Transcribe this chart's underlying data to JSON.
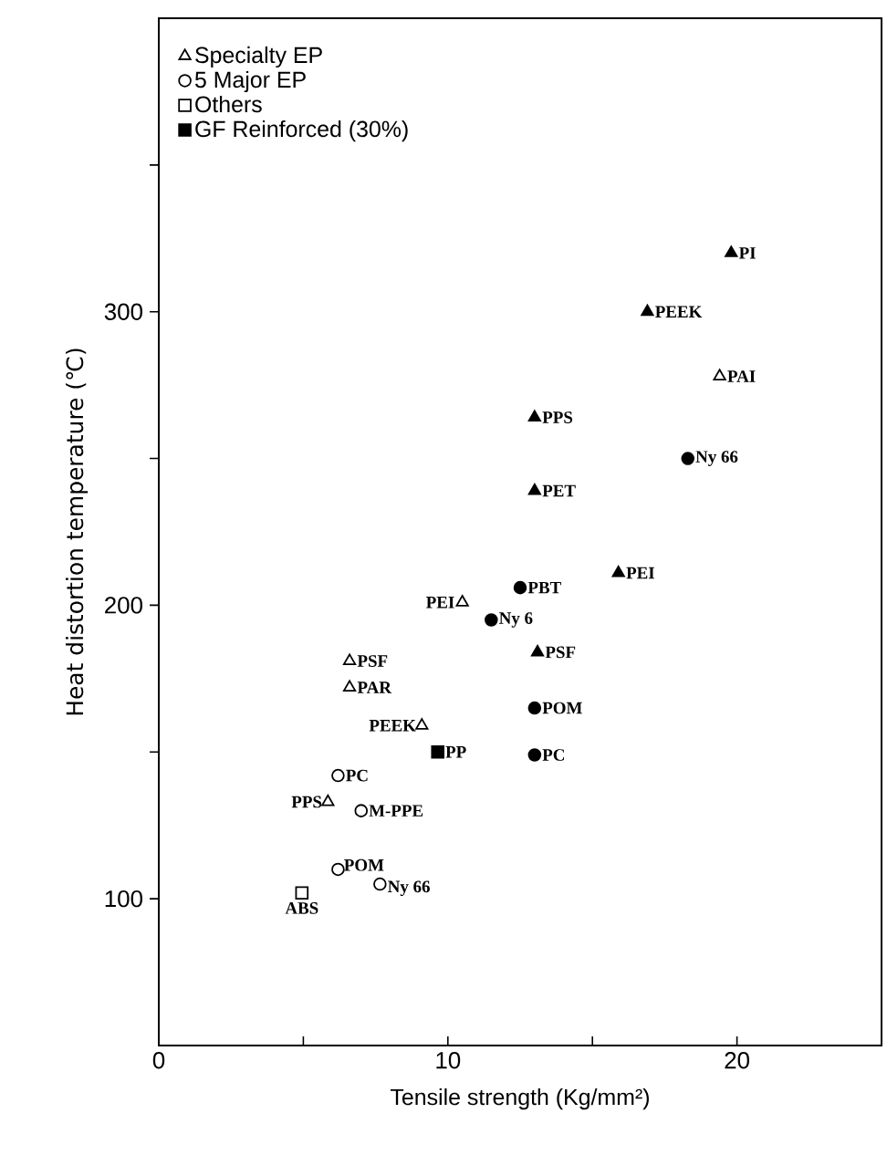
{
  "chart_data": {
    "type": "scatter",
    "xlabel": "Tensile strength (Kg/mm²)",
    "ylabel": "Heat distortion temperature (℃)",
    "xlim": [
      0,
      25
    ],
    "ylim": [
      50,
      400
    ],
    "xticks": [
      0,
      {
        "value": 5,
        "label": null
      },
      10,
      {
        "value": 15,
        "label": null
      },
      20
    ],
    "yticks": [
      100,
      {
        "value": 150,
        "label": null
      },
      200,
      {
        "value": 250,
        "label": null
      },
      300,
      {
        "value": 350,
        "label": null
      }
    ],
    "legend": "top left",
    "series": [
      {
        "name": "Specialty EP",
        "color": "#ffffff",
        "marker": "triangle",
        "x": [
          10.5,
          6.6,
          6.6,
          9.1,
          5.85,
          19.4
        ],
        "values": [
          201,
          181,
          172,
          159,
          133,
          278
        ]
      },
      {
        "name": "5 Major EP",
        "color": "#ffffff",
        "marker": "circle",
        "x": [
          6.2,
          7.0,
          6.2,
          7.65
        ],
        "values": [
          142,
          130,
          110,
          105
        ]
      },
      {
        "name": "Others",
        "color": "#ffffff",
        "marker": "square",
        "x": [
          4.95
        ],
        "values": [
          102
        ]
      },
      {
        "name": "GF Reinforced (30%)",
        "color": "#000000",
        "marker": "square",
        "x": [
          9.65
        ],
        "values": [
          150
        ]
      },
      {
        "color": "#000000",
        "marker": "triangle",
        "x": [
          19.8,
          16.9,
          13.0,
          13.0,
          15.9,
          13.1
        ],
        "values": [
          320,
          300,
          264,
          239,
          211,
          184
        ]
      },
      {
        "color": "#000000",
        "marker": "circle",
        "x": [
          18.3,
          12.5,
          11.5,
          13.0,
          13.0
        ],
        "values": [
          250,
          206,
          195,
          165,
          149
        ]
      }
    ],
    "annotations": [
      {
        "text": "PI",
        "x": 19.8,
        "y": 320
      },
      {
        "text": "PEEK",
        "x": 16.9,
        "y": 300
      },
      {
        "text": "PAI",
        "x": 19.4,
        "y": 278
      },
      {
        "text": "PPS",
        "x": 13.0,
        "y": 264
      },
      {
        "text": "Ny 66",
        "x": 18.3,
        "y": 250
      },
      {
        "text": "PET",
        "x": 13.0,
        "y": 239
      },
      {
        "text": "PEI",
        "x": 15.9,
        "y": 211
      },
      {
        "text": "PBT",
        "x": 12.5,
        "y": 206
      },
      {
        "text": "PEI",
        "x": 10.5,
        "y": 201
      },
      {
        "text": "Ny 6",
        "x": 11.5,
        "y": 195
      },
      {
        "text": "PSF",
        "x": 13.1,
        "y": 184
      },
      {
        "text": "PSF",
        "x": 6.6,
        "y": 181
      },
      {
        "text": "PAR",
        "x": 6.6,
        "y": 172
      },
      {
        "text": "POM",
        "x": 13.0,
        "y": 165
      },
      {
        "text": "PEEK",
        "x": 9.1,
        "y": 159
      },
      {
        "text": "PP",
        "x": 9.65,
        "y": 150
      },
      {
        "text": "PC",
        "x": 13.0,
        "y": 149
      },
      {
        "text": "PC",
        "x": 6.2,
        "y": 142
      },
      {
        "text": "PPS",
        "x": 5.85,
        "y": 133
      },
      {
        "text": "M-PPE",
        "x": 7.0,
        "y": 130
      },
      {
        "text": "POM",
        "x": 6.2,
        "y": 110
      },
      {
        "text": "Ny 66",
        "x": 7.65,
        "y": 105
      },
      {
        "text": "ABS",
        "x": 4.95,
        "y": 102
      }
    ]
  }
}
